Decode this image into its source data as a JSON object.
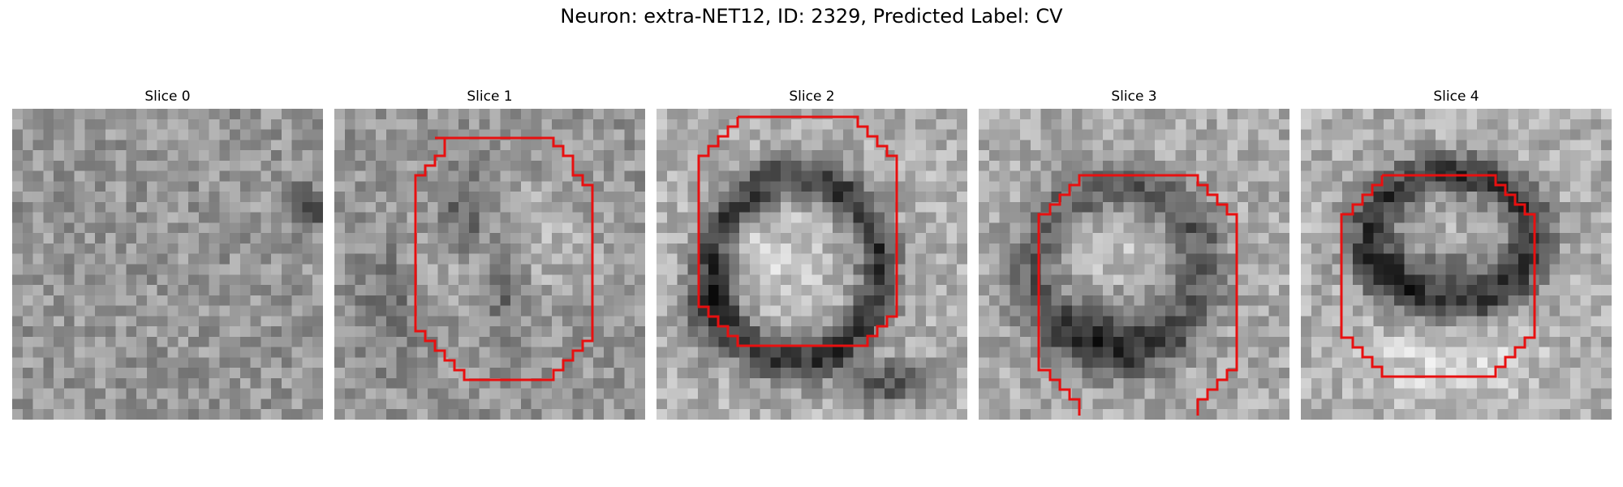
{
  "figure": {
    "title": "Neuron: extra-NET12, ID: 2329, Predicted Label: CV"
  },
  "slices": [
    {
      "label": "Slice 0"
    },
    {
      "label": "Slice 1"
    },
    {
      "label": "Slice 2"
    },
    {
      "label": "Slice 3"
    },
    {
      "label": "Slice 4"
    }
  ],
  "colors": {
    "contour": "#e81010",
    "background": "#ffffff"
  }
}
